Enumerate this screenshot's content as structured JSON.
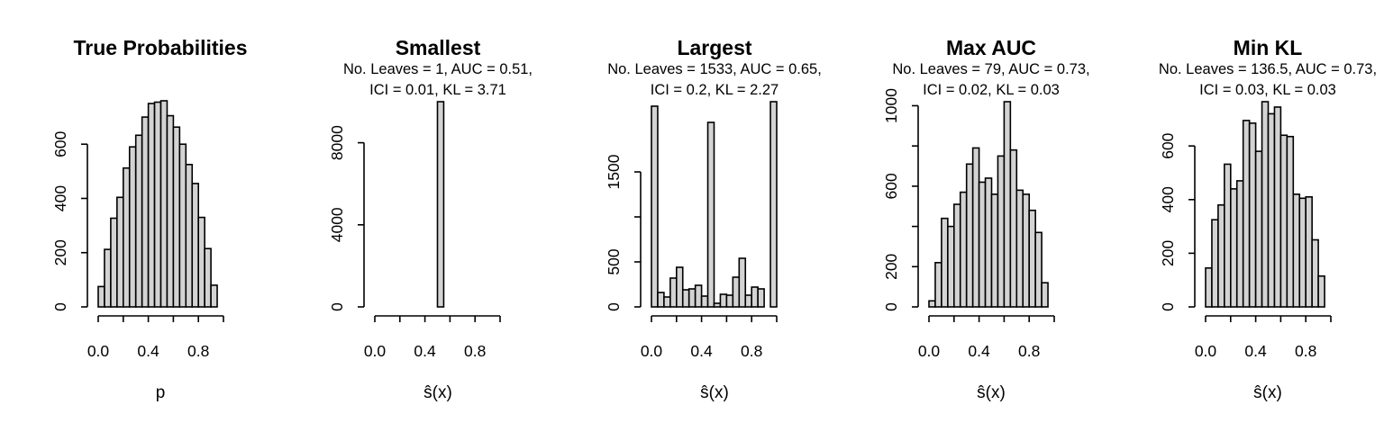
{
  "chart_data": [
    {
      "type": "histogram",
      "title": "True Probabilities",
      "subtitle_lines": [],
      "xlabel": "p",
      "x_ticks": [
        "0.0",
        "0.4",
        "0.8"
      ],
      "y_ticks": [
        "0",
        "200",
        "400",
        "600"
      ],
      "bin_edges": [
        0.0,
        0.05,
        0.1,
        0.15,
        0.2,
        0.25,
        0.3,
        0.35,
        0.4,
        0.45,
        0.5,
        0.55,
        0.6,
        0.65,
        0.7,
        0.75,
        0.8,
        0.85,
        0.9,
        0.95,
        1.0
      ],
      "values": [
        75,
        212,
        327,
        404,
        512,
        590,
        633,
        700,
        750,
        755,
        760,
        705,
        663,
        600,
        525,
        455,
        330,
        215,
        80,
        0
      ],
      "xlim": [
        0,
        1
      ],
      "ylim": [
        0,
        760
      ]
    },
    {
      "type": "histogram",
      "title": "Smallest",
      "subtitle_lines": [
        "No. Leaves = 1, AUC = 0.51,",
        "ICI = 0.01, KL = 3.71"
      ],
      "xlabel": "ŝ(x)",
      "x_ticks": [
        "0.0",
        "0.4",
        "0.8"
      ],
      "y_ticks": [
        "0",
        "4000",
        "8000"
      ],
      "bin_edges": [
        0.0,
        0.05,
        0.1,
        0.15,
        0.2,
        0.25,
        0.3,
        0.35,
        0.4,
        0.45,
        0.5,
        0.55,
        0.6,
        0.65,
        0.7,
        0.75,
        0.8,
        0.85,
        0.9,
        0.95,
        1.0
      ],
      "values": [
        0,
        0,
        0,
        0,
        0,
        0,
        0,
        0,
        0,
        0,
        10000,
        0,
        0,
        0,
        0,
        0,
        0,
        0,
        0,
        0
      ],
      "xlim": [
        0,
        1
      ],
      "ylim": [
        0,
        10000
      ]
    },
    {
      "type": "histogram",
      "title": "Largest",
      "subtitle_lines": [
        "No. Leaves = 1533, AUC = 0.65,",
        "ICI = 0.2, KL = 2.27"
      ],
      "xlabel": "ŝ(x)",
      "x_ticks": [
        "0.0",
        "0.4",
        "0.8"
      ],
      "y_ticks": [
        "0",
        "500",
        "1500"
      ],
      "bin_edges": [
        0.0,
        0.05,
        0.1,
        0.15,
        0.2,
        0.25,
        0.3,
        0.35,
        0.4,
        0.45,
        0.5,
        0.55,
        0.6,
        0.65,
        0.7,
        0.75,
        0.8,
        0.85,
        0.9,
        0.95,
        1.0
      ],
      "values": [
        2230,
        160,
        110,
        320,
        440,
        190,
        200,
        240,
        120,
        2050,
        40,
        140,
        130,
        330,
        540,
        130,
        220,
        200,
        0,
        2280
      ],
      "xlim": [
        0,
        1
      ],
      "ylim": [
        0,
        2280
      ]
    },
    {
      "type": "histogram",
      "title": "Max AUC",
      "subtitle_lines": [
        "No. Leaves = 79, AUC = 0.73,",
        "ICI = 0.02, KL = 0.03"
      ],
      "xlabel": "ŝ(x)",
      "x_ticks": [
        "0.0",
        "0.4",
        "0.8"
      ],
      "y_ticks": [
        "0",
        "200",
        "600",
        "1000"
      ],
      "bin_edges": [
        0.0,
        0.05,
        0.1,
        0.15,
        0.2,
        0.25,
        0.3,
        0.35,
        0.4,
        0.45,
        0.5,
        0.55,
        0.6,
        0.65,
        0.7,
        0.75,
        0.8,
        0.85,
        0.9,
        0.95,
        1.0
      ],
      "values": [
        30,
        220,
        440,
        400,
        510,
        570,
        710,
        790,
        620,
        640,
        560,
        750,
        1020,
        780,
        580,
        560,
        480,
        370,
        120,
        0
      ],
      "xlim": [
        0,
        1
      ],
      "ylim": [
        0,
        1020
      ]
    },
    {
      "type": "histogram",
      "title": "Min KL",
      "subtitle_lines": [
        "No. Leaves = 136.5, AUC = 0.73,",
        "ICI = 0.03, KL = 0.03"
      ],
      "xlabel": "ŝ(x)",
      "x_ticks": [
        "0.0",
        "0.4",
        "0.8"
      ],
      "y_ticks": [
        "0",
        "200",
        "400",
        "600"
      ],
      "bin_edges": [
        0.0,
        0.05,
        0.1,
        0.15,
        0.2,
        0.25,
        0.3,
        0.35,
        0.4,
        0.45,
        0.5,
        0.55,
        0.6,
        0.65,
        0.7,
        0.75,
        0.8,
        0.85,
        0.9,
        0.95,
        1.0
      ],
      "values": [
        145,
        325,
        380,
        532,
        440,
        470,
        695,
        685,
        580,
        765,
        720,
        745,
        640,
        635,
        420,
        405,
        410,
        250,
        115,
        0
      ],
      "xlim": [
        0,
        1
      ],
      "ylim": [
        0,
        765
      ]
    }
  ]
}
